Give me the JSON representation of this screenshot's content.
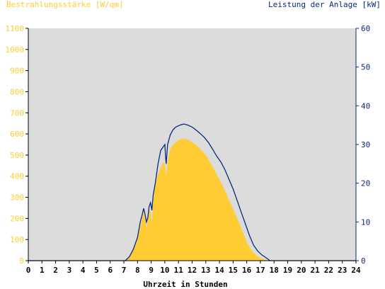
{
  "chart_data": {
    "type": "area",
    "xlabel": "Uhrzeit in Stunden",
    "left_axis_title": "Bestrahlungsstärke [W/qm]",
    "right_axis_title": "Leistung der Anlage [kW]",
    "x_ticks": [
      0,
      1,
      2,
      3,
      4,
      5,
      6,
      7,
      8,
      9,
      10,
      11,
      12,
      13,
      14,
      15,
      16,
      17,
      18,
      19,
      20,
      21,
      22,
      23,
      24
    ],
    "xlim": [
      0,
      24
    ],
    "y_left_ticks": [
      0,
      100,
      200,
      300,
      400,
      500,
      600,
      700,
      800,
      900,
      1000,
      1100
    ],
    "y_left_lim": [
      0,
      1100
    ],
    "y_right_ticks": [
      0,
      10,
      20,
      30,
      40,
      50,
      60
    ],
    "y_right_lim": [
      0,
      60
    ],
    "grid": false,
    "colors": {
      "plot_bg": "#dcdcdc",
      "irradiance": "#ffcc33",
      "power": "#0a2a7a",
      "left_axis_text": "#ffcc33",
      "right_axis_text": "#0a2a7a"
    },
    "series": [
      {
        "axis": "left",
        "style": "area",
        "color": "#ffcc33",
        "points": [
          [
            0,
            0
          ],
          [
            7.1,
            0
          ],
          [
            7.3,
            15
          ],
          [
            7.6,
            40
          ],
          [
            7.9,
            80
          ],
          [
            8.1,
            130
          ],
          [
            8.3,
            190
          ],
          [
            8.45,
            230
          ],
          [
            8.55,
            200
          ],
          [
            8.65,
            150
          ],
          [
            8.75,
            200
          ],
          [
            8.85,
            250
          ],
          [
            8.95,
            230
          ],
          [
            9.05,
            180
          ],
          [
            9.15,
            280
          ],
          [
            9.3,
            360
          ],
          [
            9.5,
            410
          ],
          [
            9.7,
            440
          ],
          [
            9.9,
            470
          ],
          [
            10.0,
            455
          ],
          [
            10.1,
            400
          ],
          [
            10.2,
            470
          ],
          [
            10.4,
            530
          ],
          [
            10.6,
            550
          ],
          [
            10.8,
            560
          ],
          [
            11.0,
            570
          ],
          [
            11.3,
            578
          ],
          [
            11.6,
            575
          ],
          [
            11.9,
            565
          ],
          [
            12.2,
            552
          ],
          [
            12.5,
            535
          ],
          [
            12.8,
            515
          ],
          [
            13.1,
            490
          ],
          [
            13.4,
            455
          ],
          [
            13.7,
            420
          ],
          [
            14.0,
            385
          ],
          [
            14.3,
            345
          ],
          [
            14.6,
            300
          ],
          [
            14.9,
            260
          ],
          [
            15.2,
            215
          ],
          [
            15.5,
            170
          ],
          [
            15.8,
            120
          ],
          [
            16.1,
            75
          ],
          [
            16.4,
            45
          ],
          [
            16.7,
            25
          ],
          [
            17.0,
            12
          ],
          [
            17.3,
            5
          ],
          [
            17.6,
            0
          ],
          [
            24,
            0
          ]
        ]
      },
      {
        "axis": "right",
        "style": "line",
        "color": "#0a2a7a",
        "points": [
          [
            0,
            0
          ],
          [
            7.1,
            0
          ],
          [
            7.4,
            1
          ],
          [
            7.7,
            3
          ],
          [
            8.0,
            6
          ],
          [
            8.2,
            10
          ],
          [
            8.35,
            12
          ],
          [
            8.45,
            13.5
          ],
          [
            8.55,
            12
          ],
          [
            8.65,
            10
          ],
          [
            8.75,
            11
          ],
          [
            8.85,
            14
          ],
          [
            8.95,
            15
          ],
          [
            9.05,
            13
          ],
          [
            9.15,
            17
          ],
          [
            9.3,
            20
          ],
          [
            9.5,
            25
          ],
          [
            9.7,
            28.5
          ],
          [
            9.9,
            29.5
          ],
          [
            10.0,
            30
          ],
          [
            10.05,
            27
          ],
          [
            10.1,
            25
          ],
          [
            10.2,
            30
          ],
          [
            10.4,
            32.5
          ],
          [
            10.6,
            33.8
          ],
          [
            10.8,
            34.5
          ],
          [
            11.1,
            35
          ],
          [
            11.4,
            35.3
          ],
          [
            11.7,
            35
          ],
          [
            12.0,
            34.5
          ],
          [
            12.3,
            33.7
          ],
          [
            12.6,
            32.8
          ],
          [
            12.9,
            31.8
          ],
          [
            13.2,
            30.5
          ],
          [
            13.5,
            28.8
          ],
          [
            13.8,
            27
          ],
          [
            14.1,
            25.5
          ],
          [
            14.4,
            23.5
          ],
          [
            14.7,
            21
          ],
          [
            15.0,
            18.5
          ],
          [
            15.3,
            15.5
          ],
          [
            15.6,
            12.5
          ],
          [
            15.9,
            9.5
          ],
          [
            16.2,
            6.5
          ],
          [
            16.5,
            4
          ],
          [
            16.8,
            2.5
          ],
          [
            17.1,
            1.5
          ],
          [
            17.4,
            0.8
          ],
          [
            17.7,
            0
          ],
          [
            24,
            0
          ]
        ]
      }
    ]
  }
}
